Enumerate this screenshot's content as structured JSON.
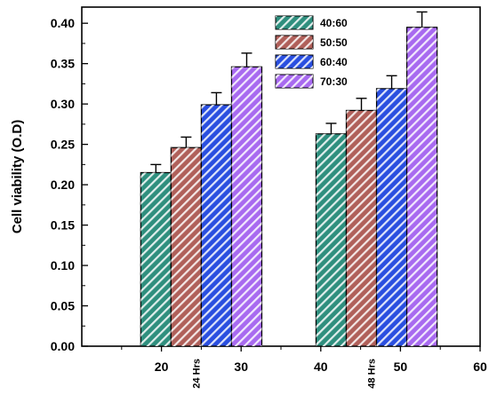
{
  "chart_data": {
    "type": "bar",
    "title": "",
    "xlabel": "",
    "ylabel": "Cell viability (O.D)",
    "ylim": [
      0,
      0.42
    ],
    "xlim": [
      10,
      60
    ],
    "y_ticks": [
      "0.00",
      "0.05",
      "0.10",
      "0.15",
      "0.20",
      "0.25",
      "0.30",
      "0.35",
      "0.40"
    ],
    "x_ticks": [
      "20",
      "30",
      "40",
      "50",
      "60"
    ],
    "categories": [
      "24 Hrs",
      "48 Hrs"
    ],
    "series": [
      {
        "name": "40:60",
        "color": "#2f8f7e",
        "values": [
          0.215,
          0.263
        ],
        "errors": [
          0.01,
          0.013
        ]
      },
      {
        "name": "50:50",
        "color": "#b0605a",
        "values": [
          0.246,
          0.292
        ],
        "errors": [
          0.013,
          0.015
        ]
      },
      {
        "name": "60:40",
        "color": "#2a4fe0",
        "values": [
          0.299,
          0.319
        ],
        "errors": [
          0.015,
          0.016
        ]
      },
      {
        "name": "70:30",
        "color": "#a86af0",
        "values": [
          0.346,
          0.395
        ],
        "errors": [
          0.017,
          0.019
        ]
      }
    ],
    "legend_position": "top-center",
    "grid": false,
    "bar_pattern": "diagonal-hatch"
  }
}
